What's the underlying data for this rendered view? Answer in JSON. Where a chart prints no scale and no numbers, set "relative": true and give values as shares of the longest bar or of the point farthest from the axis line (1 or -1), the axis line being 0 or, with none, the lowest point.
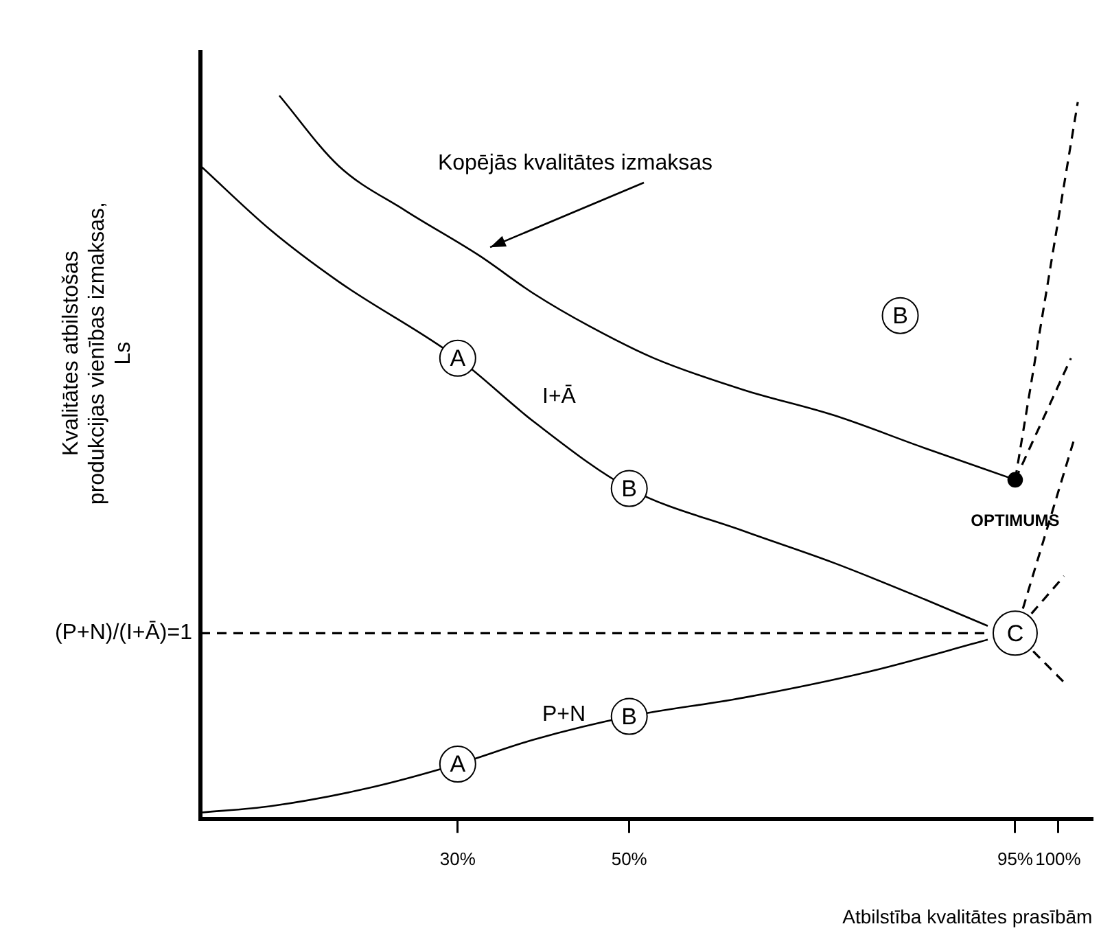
{
  "chart_data": {
    "type": "line",
    "relative": true,
    "xlabel": "Atbilstība kvalitātes prasībām",
    "ylabel": "Kvalitātes atbilstošas produkcijas vienības izmaksas, Ls",
    "xlim": [
      0,
      104
    ],
    "xticks": [
      {
        "value": 30,
        "label": "30%"
      },
      {
        "value": 50,
        "label": "50%"
      },
      {
        "value": 95,
        "label": "95%"
      },
      {
        "value": 100,
        "label": "100%"
      }
    ],
    "legend": false,
    "grid": false,
    "marker": "none",
    "line_style": "solid",
    "series": [
      {
        "name": "Kopējās kvalitātes izmaksas",
        "color": "#000000",
        "x": [
          9.2,
          16.1,
          23.9,
          32.5,
          38.9,
          45.4,
          52.9,
          63.4,
          73.9,
          84.4,
          95
        ],
        "values": [
          1.0,
          0.903,
          0.841,
          0.779,
          0.726,
          0.681,
          0.637,
          0.593,
          0.558,
          0.513,
          0.469
        ]
      },
      {
        "name": "I+Ā",
        "color": "#000000",
        "x": [
          0,
          8.2,
          16.1,
          30,
          38.9,
          50,
          63.4,
          73.9,
          84.4,
          91.8
        ],
        "values": [
          0.903,
          0.814,
          0.743,
          0.637,
          0.549,
          0.457,
          0.398,
          0.354,
          0.304,
          0.267
        ]
      },
      {
        "name": "P+N",
        "color": "#000000",
        "x": [
          0,
          8.2,
          20,
          30,
          38.9,
          50,
          63.4,
          78,
          91.8
        ],
        "values": [
          0.009,
          0.018,
          0.044,
          0.076,
          0.11,
          0.142,
          0.168,
          0.204,
          0.248
        ]
      },
      {
        "color": "#000000",
        "line_style": "dashed",
        "x": [
          95,
          102.3
        ],
        "values": [
          0.469,
          0.991
        ]
      },
      {
        "color": "#000000",
        "line_style": "dashed",
        "x": [
          95,
          101.5
        ],
        "values": [
          0.469,
          0.637
        ]
      },
      {
        "color": "#000000",
        "line_style": "dashed",
        "x": [
          95.9,
          101.8
        ],
        "values": [
          0.291,
          0.522
        ]
      },
      {
        "color": "#000000",
        "line_style": "dashed",
        "x": [
          96.9,
          100.7
        ],
        "values": [
          0.284,
          0.336
        ]
      },
      {
        "color": "#000000",
        "line_style": "dashed",
        "x": [
          97.1,
          100.7
        ],
        "values": [
          0.232,
          0.189
        ]
      },
      {
        "name": "(P+N)/(I+Ā)=1",
        "color": "#000000",
        "line_style": "dashed",
        "x": [
          0,
          92
        ],
        "values": [
          0.257,
          0.257
        ]
      },
      {
        "type": "scatter",
        "marker": "circle",
        "color": "#000000",
        "x": [
          95
        ],
        "values": [
          0.469
        ]
      }
    ],
    "annotations": [
      {
        "text": "A",
        "x": 30,
        "y": 0.076
      },
      {
        "text": "A",
        "x": 30,
        "y": 0.637
      },
      {
        "text": "B",
        "x": 50,
        "y": 0.142
      },
      {
        "text": "B",
        "x": 50,
        "y": 0.457
      },
      {
        "text": "B",
        "x": 81.6,
        "y": 0.696
      },
      {
        "text": "C",
        "x": 95,
        "y": 0.257
      },
      {
        "text": "OPTIMUMS",
        "x": 95,
        "y": 0.469
      }
    ]
  }
}
